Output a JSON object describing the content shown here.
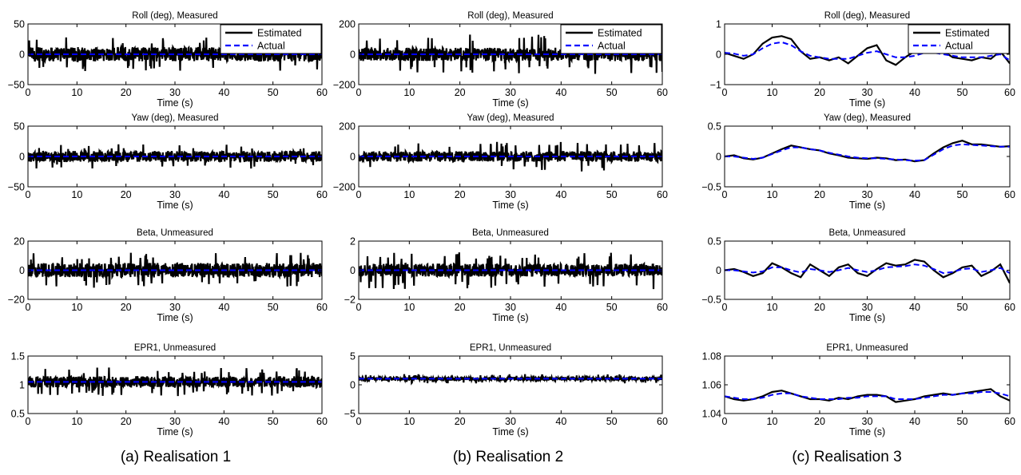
{
  "captions": [
    "(a)  Realisation 1",
    "(b)  Realisation 2",
    "(c)  Realisation 3"
  ],
  "legend": {
    "estimated": "Estimated",
    "actual": "Actual"
  },
  "colors": {
    "estimated": "#000000",
    "actual": "#0000ff"
  },
  "chart_data": [
    {
      "type": "line",
      "realisation": 1,
      "title": "Roll (deg), Measured",
      "xlabel": "Time (s)",
      "ylabel": "",
      "xlim": [
        0,
        60
      ],
      "ylim": [
        -50,
        50
      ],
      "xticks": [
        0,
        10,
        20,
        30,
        40,
        50,
        60
      ],
      "yticks": [
        -50,
        0,
        50
      ],
      "grid": false,
      "legend": "top-right",
      "series": [
        {
          "name": "Estimated",
          "style": "solid",
          "x": [
            0,
            60
          ],
          "mean": 0,
          "amplitude": 12,
          "peak": 28
        },
        {
          "name": "Actual",
          "style": "dashed",
          "x": [
            0,
            60
          ],
          "y": [
            0,
            0
          ]
        }
      ]
    },
    {
      "type": "line",
      "realisation": 1,
      "title": "Yaw (deg), Measured",
      "xlabel": "Time (s)",
      "ylabel": "",
      "xlim": [
        0,
        60
      ],
      "ylim": [
        -50,
        50
      ],
      "xticks": [
        0,
        10,
        20,
        30,
        40,
        50,
        60
      ],
      "yticks": [
        -50,
        0,
        50
      ],
      "grid": false,
      "legend": "none",
      "series": [
        {
          "name": "Estimated",
          "style": "solid",
          "x": [
            0,
            60
          ],
          "mean": 0,
          "amplitude": 9,
          "peak": 20
        },
        {
          "name": "Actual",
          "style": "dashed",
          "x": [
            0,
            60
          ],
          "y": [
            0,
            0
          ]
        }
      ]
    },
    {
      "type": "line",
      "realisation": 1,
      "title": "Beta, Unmeasured",
      "xlabel": "Time (s)",
      "ylabel": "",
      "xlim": [
        0,
        60
      ],
      "ylim": [
        -20,
        20
      ],
      "xticks": [
        0,
        10,
        20,
        30,
        40,
        50,
        60
      ],
      "yticks": [
        -20,
        0,
        20
      ],
      "grid": false,
      "legend": "none",
      "series": [
        {
          "name": "Estimated",
          "style": "solid",
          "x": [
            0,
            60
          ],
          "mean": 0,
          "amplitude": 5,
          "peak": 12
        },
        {
          "name": "Actual",
          "style": "dashed",
          "x": [
            0,
            60
          ],
          "y": [
            0,
            0
          ]
        }
      ]
    },
    {
      "type": "line",
      "realisation": 1,
      "title": "EPR1, Unmeasured",
      "xlabel": "Time (s)",
      "ylabel": "",
      "xlim": [
        0,
        60
      ],
      "ylim": [
        0.5,
        1.5
      ],
      "xticks": [
        0,
        10,
        20,
        30,
        40,
        50,
        60
      ],
      "yticks": [
        0.5,
        1,
        1.5
      ],
      "grid": false,
      "legend": "none",
      "series": [
        {
          "name": "Estimated",
          "style": "solid",
          "x": [
            0,
            60
          ],
          "mean": 1.05,
          "amplitude": 0.1,
          "peak": 0.25
        },
        {
          "name": "Actual",
          "style": "dashed",
          "x": [
            0,
            60
          ],
          "y": [
            1.05,
            1.05
          ]
        }
      ]
    },
    {
      "type": "line",
      "realisation": 2,
      "title": "Roll (deg), Measured",
      "xlabel": "Time (s)",
      "ylabel": "",
      "xlim": [
        0,
        60
      ],
      "ylim": [
        -200,
        200
      ],
      "xticks": [
        0,
        10,
        20,
        30,
        40,
        50,
        60
      ],
      "yticks": [
        -200,
        0,
        200
      ],
      "grid": false,
      "legend": "top-right",
      "series": [
        {
          "name": "Estimated",
          "style": "solid",
          "x": [
            0,
            60
          ],
          "mean": 0,
          "amplitude": 45,
          "peak": 130
        },
        {
          "name": "Actual",
          "style": "dashed",
          "x": [
            0,
            60
          ],
          "y": [
            0,
            0
          ]
        }
      ]
    },
    {
      "type": "line",
      "realisation": 2,
      "title": "Yaw (deg), Measured",
      "xlabel": "Time (s)",
      "ylabel": "",
      "xlim": [
        0,
        60
      ],
      "ylim": [
        -200,
        200
      ],
      "xticks": [
        0,
        10,
        20,
        30,
        40,
        50,
        60
      ],
      "yticks": [
        -200,
        0,
        200
      ],
      "grid": false,
      "legend": "none",
      "series": [
        {
          "name": "Estimated",
          "style": "solid",
          "x": [
            0,
            60
          ],
          "mean": 0,
          "amplitude": 35,
          "peak": 100
        },
        {
          "name": "Actual",
          "style": "dashed",
          "x": [
            0,
            60
          ],
          "y": [
            0,
            0
          ]
        }
      ]
    },
    {
      "type": "line",
      "realisation": 2,
      "title": "Beta, Unmeasured",
      "xlabel": "Time (s)",
      "ylabel": "",
      "xlim": [
        0,
        60
      ],
      "ylim": [
        -2,
        2
      ],
      "xticks": [
        0,
        10,
        20,
        30,
        40,
        50,
        60
      ],
      "yticks": [
        -2,
        0,
        2
      ],
      "grid": false,
      "legend": "none",
      "series": [
        {
          "name": "Estimated",
          "style": "solid",
          "x": [
            0,
            60
          ],
          "mean": 0,
          "amplitude": 0.45,
          "peak": 1.3
        },
        {
          "name": "Actual",
          "style": "dashed",
          "x": [
            0,
            60
          ],
          "y": [
            0,
            0
          ]
        }
      ]
    },
    {
      "type": "line",
      "realisation": 2,
      "title": "EPR1, Unmeasured",
      "xlabel": "Time (s)",
      "ylabel": "",
      "xlim": [
        0,
        60
      ],
      "ylim": [
        -5,
        5
      ],
      "xticks": [
        0,
        10,
        20,
        30,
        40,
        50,
        60
      ],
      "yticks": [
        -5,
        0,
        5
      ],
      "grid": false,
      "legend": "none",
      "series": [
        {
          "name": "Estimated",
          "style": "solid",
          "x": [
            0,
            60
          ],
          "mean": 1.05,
          "amplitude": 0.3,
          "peak": 0.8
        },
        {
          "name": "Actual",
          "style": "dashed",
          "x": [
            0,
            60
          ],
          "y": [
            1.05,
            1.05
          ]
        }
      ]
    },
    {
      "type": "line",
      "realisation": 3,
      "title": "Roll (deg), Measured",
      "xlabel": "Time (s)",
      "ylabel": "",
      "xlim": [
        0,
        60
      ],
      "ylim": [
        -1,
        1
      ],
      "xticks": [
        0,
        10,
        20,
        30,
        40,
        50,
        60
      ],
      "yticks": [
        -1,
        0,
        1
      ],
      "grid": false,
      "legend": "top-right",
      "series": [
        {
          "name": "Estimated",
          "style": "solid",
          "x": [
            0,
            2,
            4,
            6,
            8,
            10,
            12,
            14,
            16,
            18,
            20,
            22,
            24,
            26,
            28,
            30,
            32,
            34,
            36,
            38,
            40,
            42,
            44,
            46,
            48,
            50,
            52,
            54,
            56,
            58,
            60
          ],
          "y": [
            0.05,
            -0.05,
            -0.15,
            0,
            0.35,
            0.55,
            0.6,
            0.5,
            0.1,
            -0.15,
            -0.1,
            -0.2,
            -0.1,
            -0.3,
            -0.05,
            0.2,
            0.3,
            -0.2,
            -0.35,
            -0.1,
            0.1,
            0.35,
            0.05,
            0.1,
            -0.1,
            -0.15,
            -0.2,
            -0.1,
            -0.15,
            0.1,
            -0.3
          ]
        },
        {
          "name": "Actual",
          "style": "dashed",
          "x": [
            0,
            2,
            4,
            6,
            8,
            10,
            12,
            14,
            16,
            18,
            20,
            22,
            24,
            26,
            28,
            30,
            32,
            34,
            36,
            38,
            40,
            42,
            44,
            46,
            48,
            50,
            52,
            54,
            56,
            58,
            60
          ],
          "y": [
            0.05,
            0.02,
            -0.05,
            0,
            0.2,
            0.35,
            0.4,
            0.3,
            0.1,
            -0.05,
            -0.1,
            -0.15,
            -0.15,
            -0.15,
            -0.05,
            0.05,
            0.1,
            0,
            -0.1,
            -0.1,
            -0.05,
            0.05,
            0.05,
            0,
            -0.05,
            -0.1,
            -0.1,
            -0.1,
            -0.05,
            0,
            -0.2
          ]
        }
      ]
    },
    {
      "type": "line",
      "realisation": 3,
      "title": "Yaw (deg), Measured",
      "xlabel": "Time (s)",
      "ylabel": "",
      "xlim": [
        0,
        60
      ],
      "ylim": [
        -0.5,
        0.5
      ],
      "xticks": [
        0,
        10,
        20,
        30,
        40,
        50,
        60
      ],
      "yticks": [
        -0.5,
        0,
        0.5
      ],
      "grid": false,
      "legend": "none",
      "series": [
        {
          "name": "Estimated",
          "style": "solid",
          "x": [
            0,
            2,
            4,
            6,
            8,
            10,
            12,
            14,
            16,
            18,
            20,
            22,
            24,
            26,
            28,
            30,
            32,
            34,
            36,
            38,
            40,
            42,
            44,
            46,
            48,
            50,
            52,
            54,
            56,
            58,
            60
          ],
          "y": [
            0,
            0.02,
            -0.03,
            -0.05,
            -0.02,
            0.05,
            0.12,
            0.18,
            0.15,
            0.12,
            0.1,
            0.05,
            0.02,
            -0.02,
            -0.03,
            -0.04,
            -0.02,
            -0.03,
            -0.06,
            -0.05,
            -0.08,
            -0.06,
            0.05,
            0.15,
            0.22,
            0.26,
            0.2,
            0.2,
            0.18,
            0.16,
            0.17
          ]
        },
        {
          "name": "Actual",
          "style": "dashed",
          "x": [
            0,
            2,
            4,
            6,
            8,
            10,
            12,
            14,
            16,
            18,
            20,
            22,
            24,
            26,
            28,
            30,
            32,
            34,
            36,
            38,
            40,
            42,
            44,
            46,
            48,
            50,
            52,
            54,
            56,
            58,
            60
          ],
          "y": [
            0,
            0,
            -0.02,
            -0.04,
            -0.02,
            0.04,
            0.1,
            0.15,
            0.15,
            0.12,
            0.1,
            0.06,
            0.03,
            0,
            -0.02,
            -0.03,
            -0.03,
            -0.04,
            -0.05,
            -0.06,
            -0.07,
            -0.06,
            0.03,
            0.12,
            0.18,
            0.2,
            0.19,
            0.18,
            0.17,
            0.16,
            0.16
          ]
        }
      ]
    },
    {
      "type": "line",
      "realisation": 3,
      "title": "Beta, Unmeasured",
      "xlabel": "Time (s)",
      "ylabel": "",
      "xlim": [
        0,
        60
      ],
      "ylim": [
        -0.5,
        0.5
      ],
      "xticks": [
        0,
        10,
        20,
        30,
        40,
        50,
        60
      ],
      "yticks": [
        -0.5,
        0,
        0.5
      ],
      "grid": false,
      "legend": "none",
      "series": [
        {
          "name": "Estimated",
          "style": "solid",
          "x": [
            0,
            2,
            4,
            6,
            8,
            10,
            12,
            14,
            16,
            18,
            20,
            22,
            24,
            26,
            28,
            30,
            32,
            34,
            36,
            38,
            40,
            42,
            44,
            46,
            48,
            50,
            52,
            54,
            56,
            58,
            60
          ],
          "y": [
            0,
            0.02,
            -0.03,
            -0.1,
            -0.05,
            0.12,
            0.05,
            -0.05,
            -0.12,
            0.1,
            0,
            -0.1,
            0.05,
            0.1,
            -0.05,
            -0.1,
            0.02,
            0.12,
            0.08,
            0.1,
            0.18,
            0.15,
            0,
            -0.12,
            -0.05,
            0.05,
            0.08,
            -0.1,
            -0.02,
            0.1,
            -0.22
          ]
        },
        {
          "name": "Actual",
          "style": "dashed",
          "x": [
            0,
            2,
            4,
            6,
            8,
            10,
            12,
            14,
            16,
            18,
            20,
            22,
            24,
            26,
            28,
            30,
            32,
            34,
            36,
            38,
            40,
            42,
            44,
            46,
            48,
            50,
            52,
            54,
            56,
            58,
            60
          ],
          "y": [
            0,
            0,
            -0.02,
            -0.04,
            -0.02,
            0.05,
            0.05,
            0,
            -0.04,
            0.02,
            0,
            -0.03,
            0,
            0.04,
            0,
            -0.03,
            0,
            0.05,
            0.06,
            0.07,
            0.1,
            0.08,
            0.02,
            -0.05,
            -0.03,
            0.02,
            0.03,
            -0.03,
            0,
            0.04,
            -0.05
          ]
        }
      ]
    },
    {
      "type": "line",
      "realisation": 3,
      "title": "EPR1, Unmeasured",
      "xlabel": "Time (s)",
      "ylabel": "",
      "xlim": [
        0,
        60
      ],
      "ylim": [
        1.04,
        1.08
      ],
      "xticks": [
        0,
        10,
        20,
        30,
        40,
        50,
        60
      ],
      "yticks": [
        1.04,
        1.06,
        1.08
      ],
      "grid": false,
      "legend": "none",
      "series": [
        {
          "name": "Estimated",
          "style": "solid",
          "x": [
            0,
            2,
            4,
            6,
            8,
            10,
            12,
            14,
            16,
            18,
            20,
            22,
            24,
            26,
            28,
            30,
            32,
            34,
            36,
            38,
            40,
            42,
            44,
            46,
            48,
            50,
            52,
            54,
            56,
            58,
            60
          ],
          "y": [
            1.052,
            1.05,
            1.049,
            1.05,
            1.052,
            1.055,
            1.056,
            1.054,
            1.052,
            1.05,
            1.05,
            1.049,
            1.051,
            1.05,
            1.052,
            1.053,
            1.053,
            1.052,
            1.048,
            1.049,
            1.05,
            1.052,
            1.053,
            1.054,
            1.053,
            1.054,
            1.055,
            1.056,
            1.057,
            1.052,
            1.049
          ]
        },
        {
          "name": "Actual",
          "style": "dashed",
          "x": [
            0,
            2,
            4,
            6,
            8,
            10,
            12,
            14,
            16,
            18,
            20,
            22,
            24,
            26,
            28,
            30,
            32,
            34,
            36,
            38,
            40,
            42,
            44,
            46,
            48,
            50,
            52,
            54,
            56,
            58,
            60
          ],
          "y": [
            1.052,
            1.051,
            1.05,
            1.05,
            1.051,
            1.053,
            1.054,
            1.054,
            1.052,
            1.051,
            1.05,
            1.05,
            1.05,
            1.051,
            1.051,
            1.052,
            1.052,
            1.052,
            1.05,
            1.05,
            1.05,
            1.051,
            1.052,
            1.053,
            1.053,
            1.054,
            1.054,
            1.055,
            1.055,
            1.054,
            1.052
          ]
        }
      ]
    }
  ]
}
